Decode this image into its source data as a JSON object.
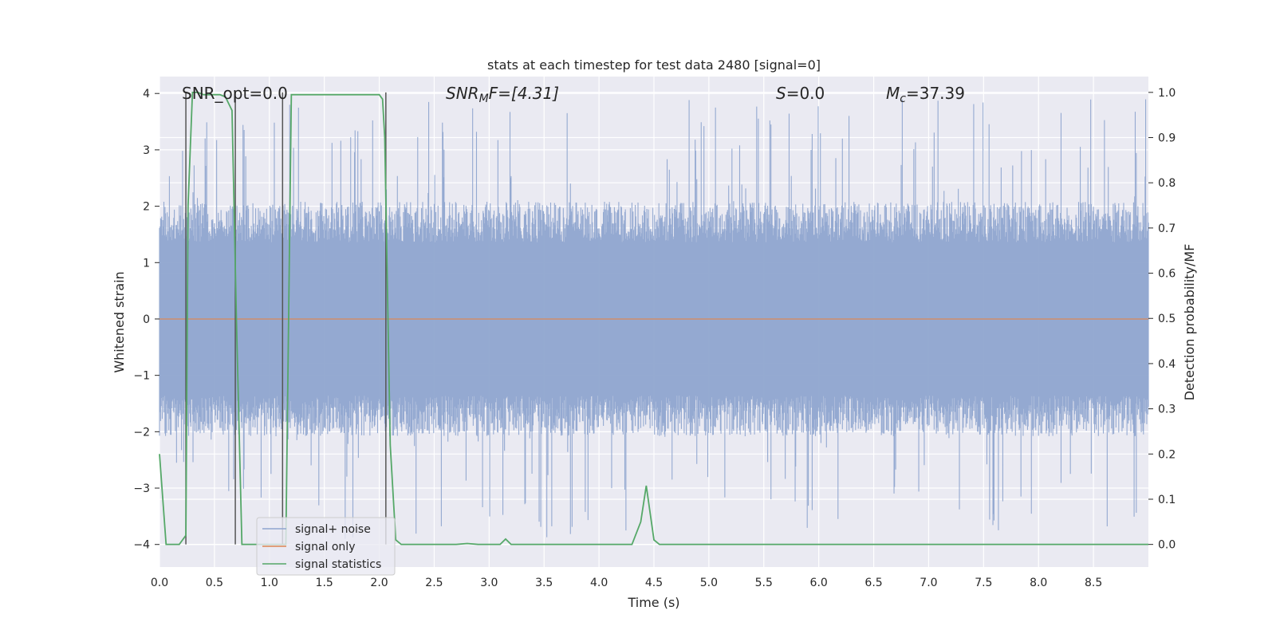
{
  "chart_data": {
    "type": "line",
    "title": "stats at each timestep for test data 2480 [signal=0]",
    "xlabel": "Time (s)",
    "ylabel": "Whitened strain",
    "y2label": "Detection probability/MF",
    "xlim": [
      0,
      9.0
    ],
    "ylim": [
      -4.4,
      4.3
    ],
    "y2lim": [
      -0.05,
      1.035
    ],
    "x_ticks": [
      "0.0",
      "0.5",
      "1.0",
      "1.5",
      "2.0",
      "2.5",
      "3.0",
      "3.5",
      "4.0",
      "4.5",
      "5.0",
      "5.5",
      "6.0",
      "6.5",
      "7.0",
      "7.5",
      "8.0",
      "8.5"
    ],
    "y_ticks": [
      "4",
      "3",
      "2",
      "1",
      "0",
      "−1",
      "−2",
      "−3",
      "−4"
    ],
    "y2_ticks": [
      "1.0",
      "0.9",
      "0.8",
      "0.7",
      "0.6",
      "0.5",
      "0.4",
      "0.3",
      "0.2",
      "0.1",
      "0.0"
    ],
    "grid": true,
    "legend_position": "lower-left",
    "annotations": {
      "snr_opt": "SNR_opt=0.0",
      "snr_mf": "SNR",
      "snr_mf_sub": "M",
      "snr_mf_rest": "F=[4.31]",
      "s_label": "S",
      "s_value": "=0.0",
      "mc_label": "M",
      "mc_sub": "c",
      "mc_value": "=37.39"
    },
    "series": [
      {
        "name": "signal+ noise",
        "color": "#8fa5cf",
        "kind": "noise",
        "amplitude_typical": 1.6,
        "amplitude_peak": 3.9
      },
      {
        "name": "signal only",
        "color": "#dd8452",
        "kind": "flat",
        "values_y": 0
      },
      {
        "name": "signal statistics",
        "color": "#55a868",
        "axis": "right",
        "x": [
          0.0,
          0.06,
          0.18,
          0.24,
          0.26,
          0.3,
          0.35,
          0.4,
          0.45,
          0.5,
          0.55,
          0.6,
          0.63,
          0.66,
          0.7,
          0.75,
          0.8,
          0.85,
          0.9,
          0.95,
          1.0,
          1.05,
          1.1,
          1.15,
          1.2,
          1.25,
          1.3,
          1.4,
          1.5,
          1.6,
          1.7,
          1.8,
          1.9,
          2.0,
          2.03,
          2.05,
          2.1,
          2.15,
          2.2,
          2.3,
          2.5,
          2.7,
          2.8,
          2.9,
          3.0,
          3.1,
          3.15,
          3.2,
          3.3,
          3.4,
          3.5,
          4.0,
          4.3,
          4.38,
          4.43,
          4.5,
          4.55,
          4.6,
          5.0,
          6.0,
          7.0,
          8.0,
          9.0
        ],
        "values": [
          0.2,
          0.0,
          0.0,
          0.02,
          0.75,
          1.0,
          1.0,
          0.995,
          0.995,
          0.995,
          0.995,
          0.99,
          0.975,
          0.96,
          0.5,
          0.0,
          0.0,
          0.0,
          0.0,
          0.0,
          0.0,
          0.0,
          0.0,
          0.0,
          0.995,
          0.995,
          0.995,
          0.995,
          0.995,
          0.995,
          0.995,
          0.995,
          0.995,
          0.995,
          0.985,
          0.9,
          0.22,
          0.01,
          0.0,
          0.0,
          0.0,
          0.0,
          0.002,
          0.0,
          0.0,
          0.0,
          0.012,
          0.0,
          0.0,
          0.0,
          0.0,
          0.0,
          0.0,
          0.05,
          0.13,
          0.01,
          0.0,
          0.0,
          0.0,
          0.0,
          0.0,
          0.0,
          0.0
        ]
      }
    ],
    "vertical_markers": [
      0.24,
      0.69,
      1.12,
      2.06
    ],
    "marker_color": "#555555"
  }
}
